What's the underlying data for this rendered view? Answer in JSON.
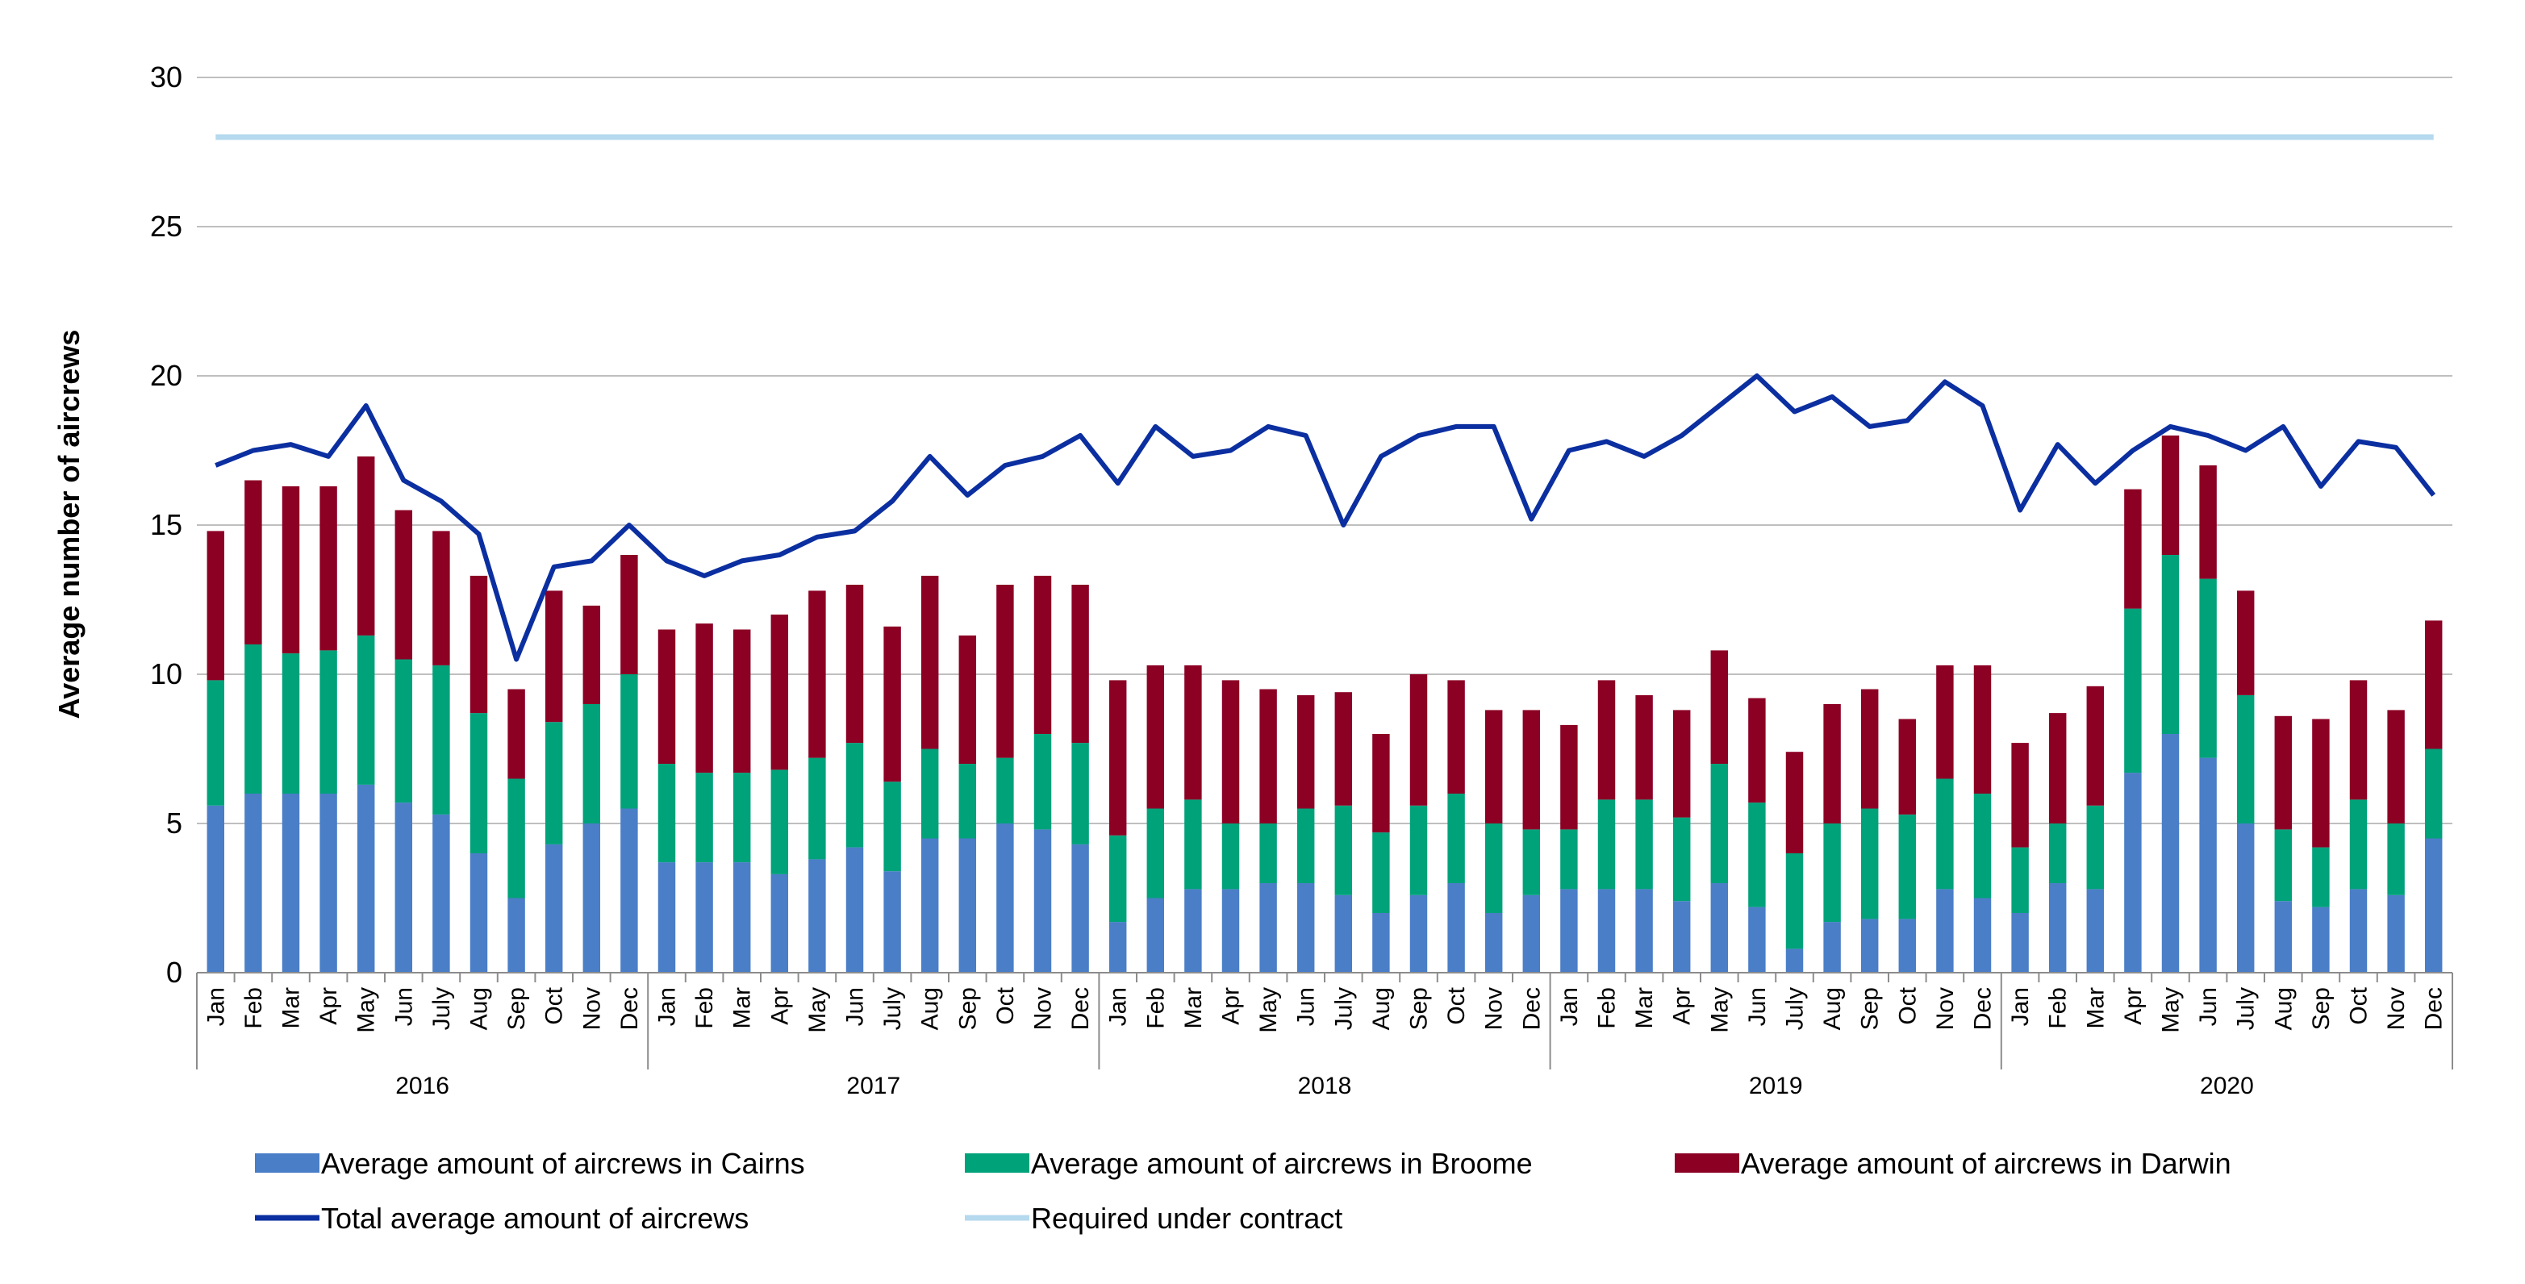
{
  "chart_data": {
    "type": "bar",
    "stacked": true,
    "ylabel": "Average number of aircrews",
    "xlabel": "",
    "ylim": [
      0,
      30
    ],
    "yticks": [
      0,
      5,
      10,
      15,
      20,
      25,
      30
    ],
    "grid": "horizontal",
    "legend_position": "bottom",
    "years": [
      {
        "label": "2016",
        "span": [
          0,
          11
        ]
      },
      {
        "label": "2017",
        "span": [
          12,
          23
        ]
      },
      {
        "label": "2018",
        "span": [
          24,
          35
        ]
      },
      {
        "label": "2019",
        "span": [
          36,
          47
        ]
      },
      {
        "label": "2020",
        "span": [
          48,
          59
        ]
      }
    ],
    "categories": [
      "Jan",
      "Feb",
      "Mar",
      "Apr",
      "May",
      "Jun",
      "July",
      "Aug",
      "Sep",
      "Oct",
      "Nov",
      "Dec",
      "Jan",
      "Feb",
      "Mar",
      "Apr",
      "May",
      "Jun",
      "July",
      "Aug",
      "Sep",
      "Oct",
      "Nov",
      "Dec",
      "Jan",
      "Feb",
      "Mar",
      "Apr",
      "May",
      "Jun",
      "July",
      "Aug",
      "Sep",
      "Oct",
      "Nov",
      "Dec",
      "Jan",
      "Feb",
      "Mar",
      "Apr",
      "May",
      "Jun",
      "July",
      "Aug",
      "Sep",
      "Oct",
      "Nov",
      "Dec",
      "Jan",
      "Feb",
      "Mar",
      "Apr",
      "May",
      "Jun",
      "July",
      "Aug",
      "Sep",
      "Oct",
      "Nov",
      "Dec"
    ],
    "series": [
      {
        "name": "Average amount of aircrews in Cairns",
        "kind": "bar",
        "color": "#4a7ec7",
        "values": [
          5.6,
          6.0,
          6.0,
          6.0,
          6.3,
          5.7,
          5.3,
          4.0,
          2.5,
          4.3,
          5.0,
          5.5,
          3.7,
          3.7,
          3.7,
          3.3,
          3.8,
          4.2,
          3.4,
          4.5,
          4.5,
          5.0,
          4.8,
          4.3,
          1.7,
          2.5,
          2.8,
          2.8,
          3.0,
          3.0,
          2.6,
          2.0,
          2.6,
          3.0,
          2.0,
          2.6,
          2.8,
          2.8,
          2.8,
          2.4,
          3.0,
          2.2,
          0.8,
          1.7,
          1.8,
          1.8,
          2.8,
          2.5,
          2.0,
          3.0,
          2.8,
          6.7,
          8.0,
          7.2,
          5.0,
          2.4,
          2.2,
          2.8,
          2.6,
          4.5
        ]
      },
      {
        "name": "Average amount of aircrews in Broome",
        "kind": "bar",
        "color": "#00a27a",
        "values": [
          4.2,
          5.0,
          4.7,
          4.8,
          5.0,
          4.8,
          5.0,
          4.7,
          4.0,
          4.1,
          4.0,
          4.5,
          3.3,
          3.0,
          3.0,
          3.5,
          3.4,
          3.5,
          3.0,
          3.0,
          2.5,
          2.2,
          3.2,
          3.4,
          2.9,
          3.0,
          3.0,
          2.2,
          2.0,
          2.5,
          3.0,
          2.7,
          3.0,
          3.0,
          3.0,
          2.2,
          2.0,
          3.0,
          3.0,
          2.8,
          4.0,
          3.5,
          3.2,
          3.3,
          3.7,
          3.5,
          3.7,
          3.5,
          2.2,
          2.0,
          2.8,
          5.5,
          6.0,
          6.0,
          4.3,
          2.4,
          2.0,
          3.0,
          2.4,
          3.0
        ]
      },
      {
        "name": "Average amount of aircrews in Darwin",
        "kind": "bar",
        "color": "#8c0024",
        "values": [
          5.0,
          5.5,
          5.6,
          5.5,
          6.0,
          5.0,
          4.5,
          4.6,
          3.0,
          4.4,
          3.3,
          4.0,
          4.5,
          5.0,
          4.8,
          5.2,
          5.6,
          5.3,
          5.2,
          5.8,
          4.3,
          5.8,
          5.3,
          5.3,
          5.2,
          4.8,
          4.5,
          4.8,
          4.5,
          3.8,
          3.8,
          3.3,
          4.4,
          3.8,
          3.8,
          4.0,
          3.5,
          4.0,
          3.5,
          3.6,
          3.8,
          3.5,
          3.4,
          4.0,
          4.0,
          3.2,
          3.8,
          4.3,
          3.5,
          3.7,
          4.0,
          4.0,
          4.0,
          3.8,
          3.5,
          3.8,
          4.3,
          4.0,
          3.8,
          4.3
        ]
      },
      {
        "name": "Total average amount of aircrews",
        "kind": "line",
        "color": "#0b2fa0",
        "values": [
          17.0,
          17.5,
          17.7,
          17.3,
          19.0,
          16.5,
          15.8,
          14.7,
          10.5,
          13.6,
          13.8,
          15.0,
          13.8,
          13.3,
          13.8,
          14.0,
          14.6,
          14.8,
          15.8,
          17.3,
          16.0,
          17.0,
          17.3,
          18.0,
          16.4,
          18.3,
          17.3,
          17.5,
          18.3,
          18.0,
          15.0,
          17.3,
          18.0,
          18.3,
          18.3,
          15.2,
          17.5,
          17.8,
          17.3,
          18.0,
          19.0,
          20.0,
          18.8,
          19.3,
          18.3,
          18.5,
          19.8,
          19.0,
          15.5,
          17.7,
          16.4,
          17.5,
          18.3,
          18.0,
          17.5,
          18.3,
          16.3,
          17.8,
          17.6,
          16.0
        ]
      },
      {
        "name": "Required under contract",
        "kind": "line",
        "color": "#b5d9ee",
        "values": [
          28,
          28,
          28,
          28,
          28,
          28,
          28,
          28,
          28,
          28,
          28,
          28,
          28,
          28,
          28,
          28,
          28,
          28,
          28,
          28,
          28,
          28,
          28,
          28,
          28,
          28,
          28,
          28,
          28,
          28,
          28,
          28,
          28,
          28,
          28,
          28,
          28,
          28,
          28,
          28,
          28,
          28,
          28,
          28,
          28,
          28,
          28,
          28,
          28,
          28,
          28,
          28,
          28,
          28,
          28,
          28,
          28,
          28,
          28,
          28
        ]
      }
    ]
  }
}
